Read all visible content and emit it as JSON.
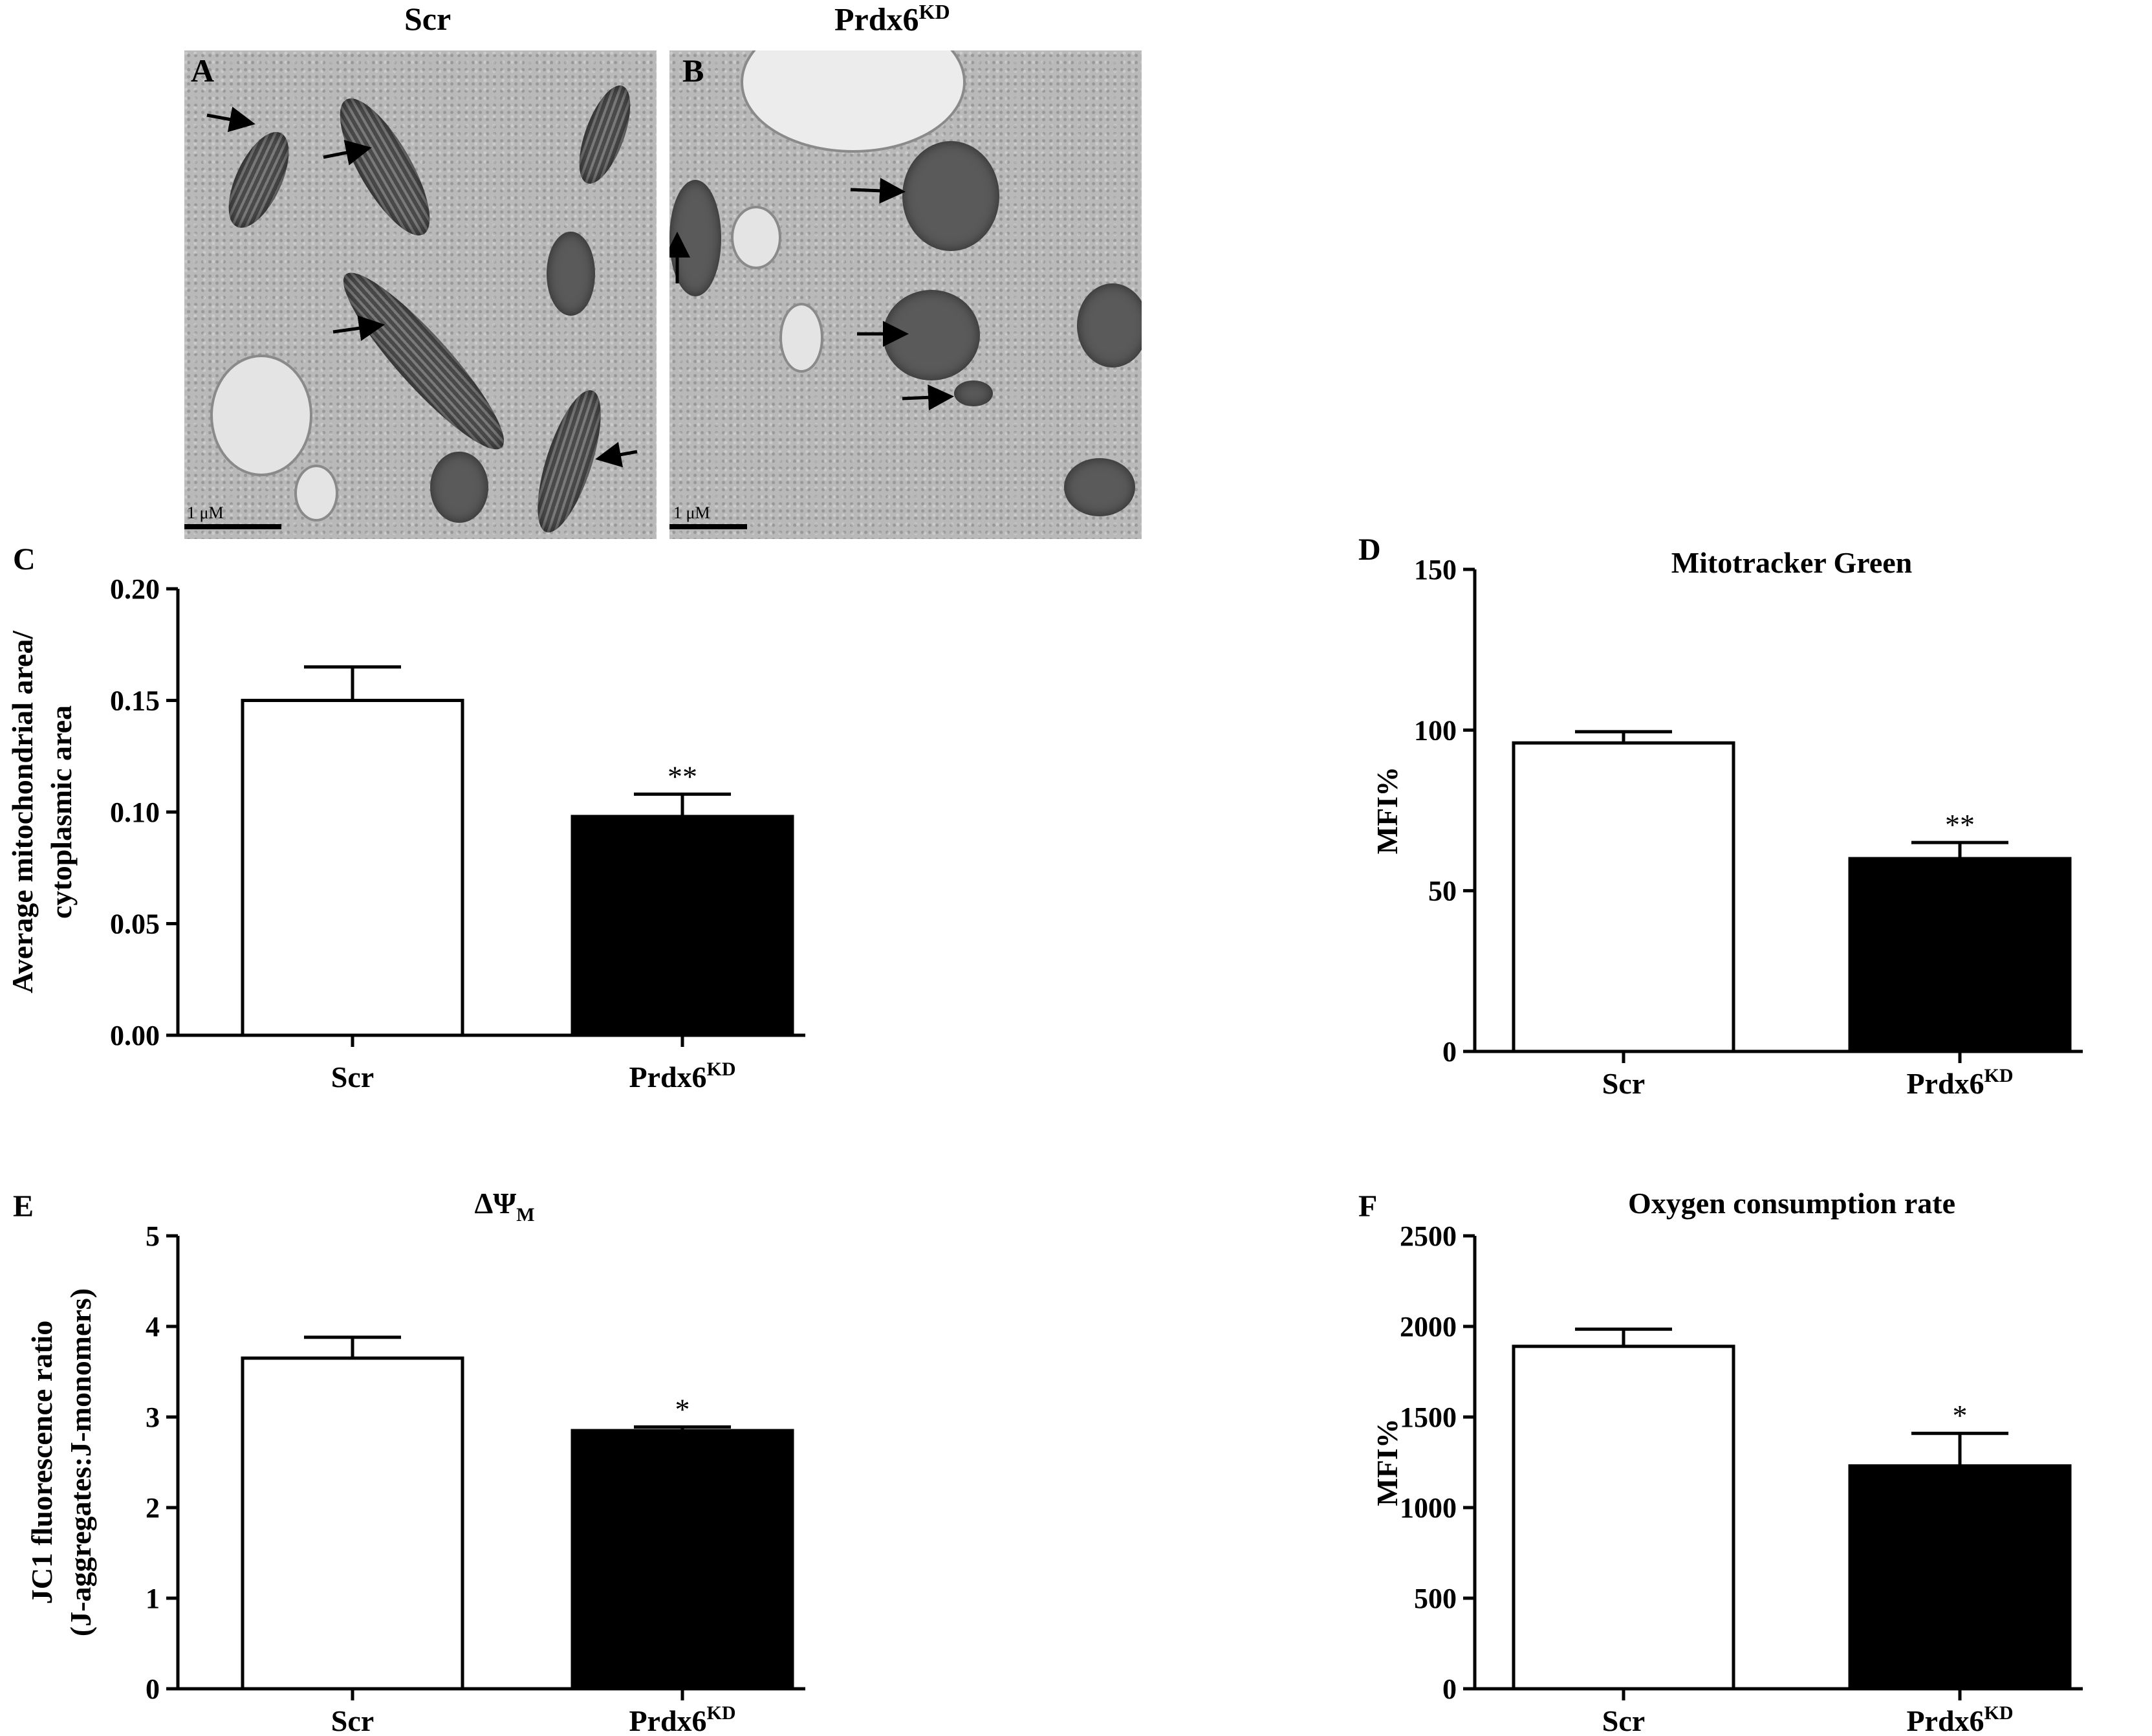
{
  "figure": {
    "header_scr": "Scr",
    "header_kd_base": "Prdx6",
    "header_kd_sup": "KD",
    "panel_A": {
      "letter": "A",
      "scale_label": "1 μM"
    },
    "panel_B": {
      "letter": "B",
      "scale_label": "1 μM"
    }
  },
  "chart_data": [
    {
      "id": "C",
      "letter": "C",
      "type": "bar",
      "categories": [
        {
          "base": "Scr",
          "sup": ""
        },
        {
          "base": "Prdx6",
          "sup": "KD"
        }
      ],
      "values": [
        0.15,
        0.098
      ],
      "errors": [
        0.015,
        0.01
      ],
      "fills": [
        "#ffffff",
        "#000000"
      ],
      "significance": [
        "",
        "**"
      ],
      "title": "",
      "ylabel": [
        "Average mitochondrial area/",
        "cytoplasmic area"
      ],
      "ylim": [
        0,
        0.2
      ],
      "yticks": [
        "0.00",
        "0.05",
        "0.10",
        "0.15",
        "0.20"
      ]
    },
    {
      "id": "D",
      "letter": "D",
      "type": "bar",
      "categories": [
        {
          "base": "Scr",
          "sup": ""
        },
        {
          "base": "Prdx6",
          "sup": "KD"
        }
      ],
      "values": [
        96,
        60
      ],
      "errors": [
        3.5,
        5
      ],
      "fills": [
        "#ffffff",
        "#000000"
      ],
      "significance": [
        "",
        "**"
      ],
      "title": "Mitotracker Green",
      "ylabel": [
        "MFI%"
      ],
      "ylim": [
        0,
        150
      ],
      "yticks": [
        "0",
        "50",
        "100",
        "150"
      ]
    },
    {
      "id": "E",
      "letter": "E",
      "type": "bar",
      "categories": [
        {
          "base": "Scr",
          "sup": ""
        },
        {
          "base": "Prdx6",
          "sup": "KD"
        }
      ],
      "values": [
        3.65,
        2.85
      ],
      "errors": [
        0.23,
        0.04
      ],
      "fills": [
        "#ffffff",
        "#000000"
      ],
      "significance": [
        "",
        "*"
      ],
      "title": "ΔΨ",
      "title_sub": "M",
      "ylabel": [
        "JC1 fluorescence ratio",
        "(J-aggregates:J-monomers)"
      ],
      "ylim": [
        0,
        5
      ],
      "yticks": [
        "0",
        "1",
        "2",
        "3",
        "4",
        "5"
      ]
    },
    {
      "id": "F",
      "letter": "F",
      "type": "bar",
      "categories": [
        {
          "base": "Scr",
          "sup": ""
        },
        {
          "base": "Prdx6",
          "sup": "KD"
        }
      ],
      "values": [
        1890,
        1230
      ],
      "errors": [
        95,
        180
      ],
      "fills": [
        "#ffffff",
        "#000000"
      ],
      "significance": [
        "",
        "*"
      ],
      "title": "Oxygen consumption rate",
      "ylabel": [
        "MFI%"
      ],
      "ylim": [
        0,
        2500
      ],
      "yticks": [
        "0",
        "500",
        "1000",
        "1500",
        "2000",
        "2500"
      ]
    }
  ]
}
